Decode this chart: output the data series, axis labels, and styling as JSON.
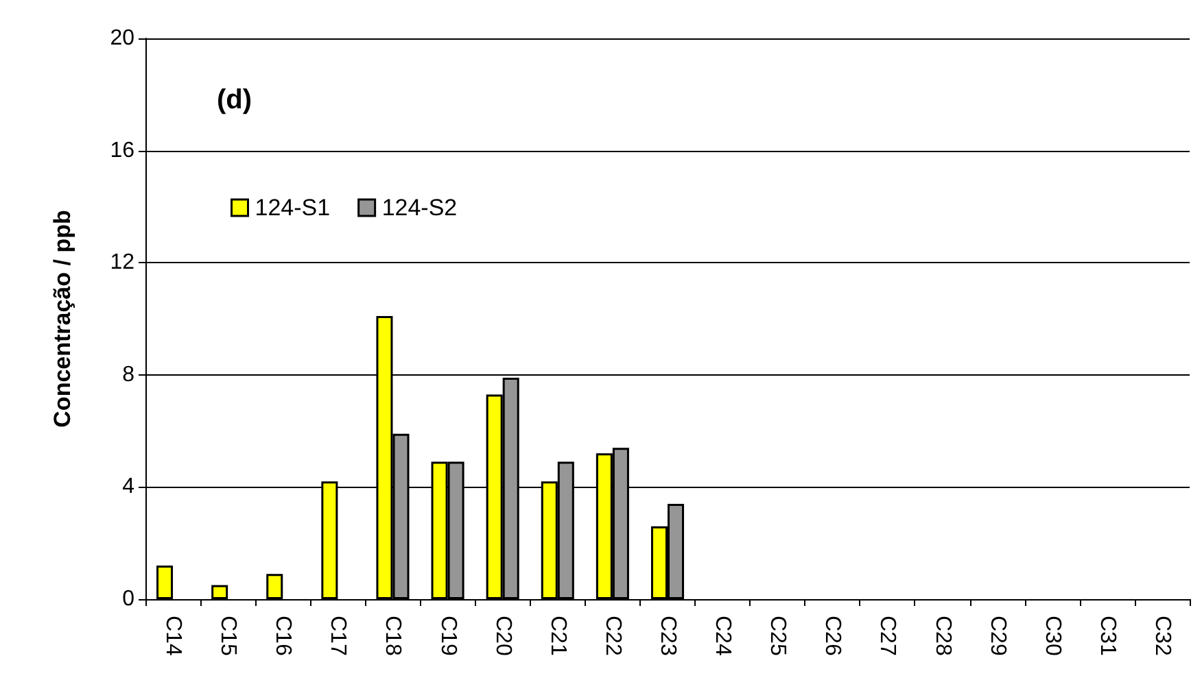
{
  "chart_data": {
    "type": "bar",
    "ylabel": "Concentração / ppb",
    "annotations": [
      "(d)"
    ],
    "categories": [
      "C14",
      "C15",
      "C16",
      "C17",
      "C18",
      "C19",
      "C20",
      "C21",
      "C22",
      "C23",
      "C24",
      "C25",
      "C26",
      "C27",
      "C28",
      "C29",
      "C30",
      "C31",
      "C32"
    ],
    "series": [
      {
        "name": "124-S1",
        "color": "#ffff00",
        "values": [
          1.2,
          0.5,
          0.9,
          4.2,
          10.1,
          4.9,
          7.3,
          4.2,
          5.2,
          2.6,
          null,
          null,
          null,
          null,
          null,
          null,
          null,
          null,
          null
        ]
      },
      {
        "name": "124-S2",
        "color": "#969696",
        "values": [
          null,
          null,
          null,
          null,
          5.9,
          4.9,
          7.9,
          4.9,
          5.4,
          3.4,
          null,
          null,
          null,
          null,
          null,
          null,
          null,
          null,
          null
        ]
      }
    ],
    "ylim": [
      0,
      20
    ],
    "yticks": [
      0,
      4,
      8,
      12,
      16,
      20
    ],
    "grid": "y",
    "legend": "top left"
  }
}
